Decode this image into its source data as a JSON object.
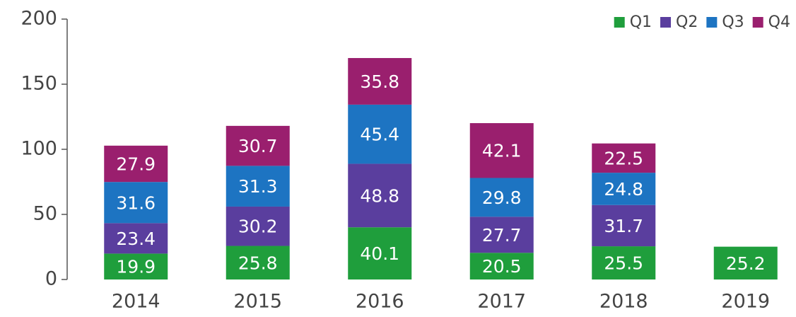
{
  "chart_data": {
    "type": "stacked_bar",
    "categories": [
      "2014",
      "2015",
      "2016",
      "2017",
      "2018",
      "2019"
    ],
    "series": [
      {
        "name": "Q1",
        "color": "#1f9e3c",
        "values": [
          19.9,
          25.8,
          40.1,
          20.5,
          25.5,
          25.2
        ]
      },
      {
        "name": "Q2",
        "color": "#5a3e9e",
        "values": [
          23.4,
          30.2,
          48.8,
          27.7,
          31.7,
          null
        ]
      },
      {
        "name": "Q3",
        "color": "#1d74c2",
        "values": [
          31.6,
          31.3,
          45.4,
          29.8,
          24.8,
          null
        ]
      },
      {
        "name": "Q4",
        "color": "#9a1f6e",
        "values": [
          27.9,
          30.7,
          35.8,
          42.1,
          22.5,
          null
        ]
      }
    ],
    "ylim": [
      0,
      200
    ],
    "yticks": [
      0,
      50,
      100,
      150,
      200
    ],
    "legend": "top-right"
  }
}
